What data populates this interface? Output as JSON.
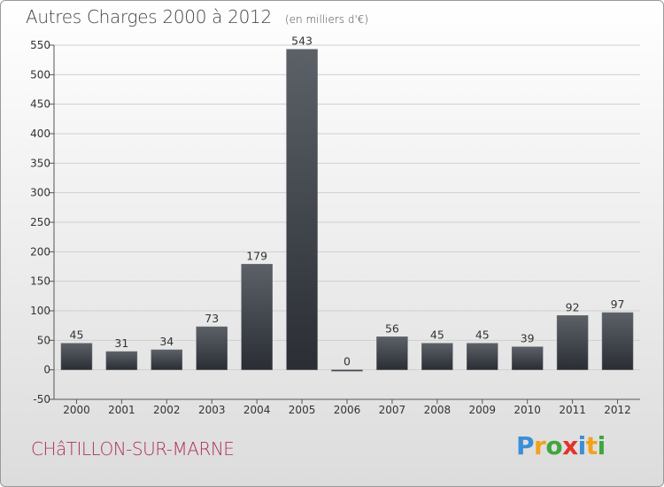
{
  "header": {
    "title": "Autres Charges 2000 à 2012",
    "unit": "(en milliers d'€)"
  },
  "footer": {
    "town": "CHâTILLON-SUR-MARNE",
    "brand": "Proxiti",
    "brand_letters": [
      {
        "ch": "P",
        "color": "#3b8fd6"
      },
      {
        "ch": "r",
        "color": "#f2a21b"
      },
      {
        "ch": "o",
        "color": "#3ea63e"
      },
      {
        "ch": "x",
        "color": "#e2342b"
      },
      {
        "ch": "i",
        "color": "#3b8fd6"
      },
      {
        "ch": "t",
        "color": "#f2a21b"
      },
      {
        "ch": "i",
        "color": "#3ea63e"
      }
    ]
  },
  "colors": {
    "bar_top": "#5c6168",
    "bar_bottom": "#2a2e34",
    "grid": "#cfcfcf",
    "axis_text": "#333333",
    "title": "#444444",
    "town": "#b0305c"
  },
  "chart_data": {
    "type": "bar",
    "title": "Autres Charges 2000 à 2012",
    "subtitle": "(en milliers d'€)",
    "categories": [
      "2000",
      "2001",
      "2002",
      "2003",
      "2004",
      "2005",
      "2006",
      "2007",
      "2008",
      "2009",
      "2010",
      "2011",
      "2012"
    ],
    "values": [
      45,
      31,
      34,
      73,
      179,
      543,
      0,
      56,
      45,
      45,
      39,
      92,
      97
    ],
    "ylim": [
      -50,
      550
    ],
    "yticks": [
      -50,
      0,
      50,
      100,
      150,
      200,
      250,
      300,
      350,
      400,
      450,
      500,
      550
    ],
    "grid": true,
    "legend": "none"
  }
}
